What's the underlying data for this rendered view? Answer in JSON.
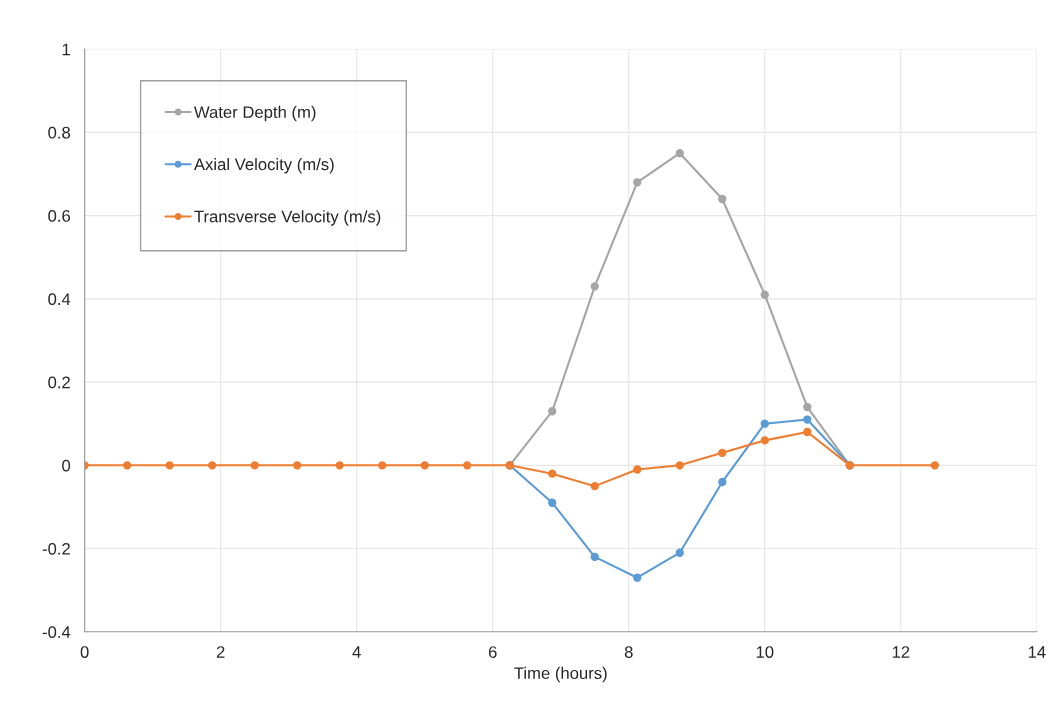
{
  "chart_data": {
    "type": "line",
    "xlabel": "Time (hours)",
    "x": [
      0,
      0.625,
      1.25,
      1.875,
      2.5,
      3.125,
      3.75,
      4.375,
      5,
      5.625,
      6.25,
      6.875,
      7.5,
      8.125,
      8.75,
      9.375,
      10,
      10.625,
      11.25,
      12.5
    ],
    "series": [
      {
        "name": "Water Depth (m)",
        "color": "#a5a5a5",
        "values": [
          null,
          null,
          null,
          null,
          null,
          null,
          null,
          null,
          null,
          null,
          0,
          0.13,
          0.43,
          0.68,
          0.75,
          0.64,
          0.41,
          0.14,
          0,
          null
        ]
      },
      {
        "name": "Axial Velocity (m/s)",
        "color": "#5b9bd5",
        "values": [
          null,
          null,
          null,
          null,
          null,
          null,
          null,
          null,
          null,
          null,
          0,
          -0.09,
          -0.22,
          -0.27,
          -0.21,
          -0.04,
          0.1,
          0.11,
          0,
          null
        ]
      },
      {
        "name": "Transverse Velocity (m/s)",
        "color": "#ed7d31",
        "values": [
          0,
          0,
          0,
          0,
          0,
          0,
          0,
          0,
          0,
          0,
          0,
          -0.02,
          -0.05,
          -0.01,
          0,
          0.03,
          0.06,
          0.08,
          0,
          0
        ]
      }
    ],
    "xlim": [
      0,
      14
    ],
    "xticks": [
      0,
      2,
      4,
      6,
      8,
      10,
      12,
      14
    ],
    "ylim": [
      -0.4,
      1
    ],
    "yticks": [
      -0.4,
      -0.2,
      0,
      0.2,
      0.4,
      0.6,
      0.8,
      1
    ],
    "grid": true,
    "legend": "top left",
    "marker": "circle",
    "line_style": "solid"
  }
}
